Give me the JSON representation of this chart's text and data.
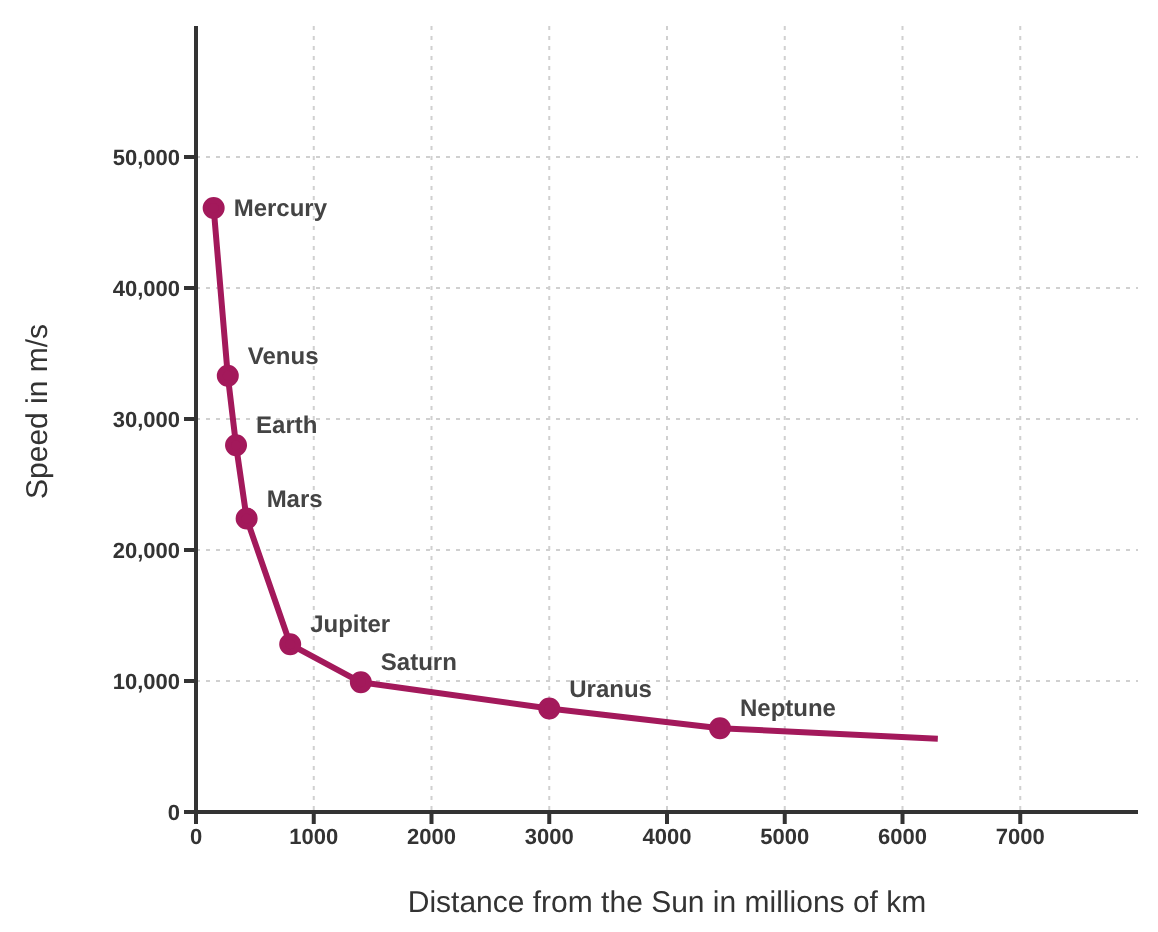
{
  "chart_data": {
    "type": "line",
    "xlabel": "Distance from the Sun in millions of km",
    "ylabel": "Speed in m/s",
    "series": [
      {
        "color": "#a3195b",
        "marker": "circle",
        "x": [
          150,
          270,
          340,
          430,
          800,
          1400,
          3000,
          4450
        ],
        "values": [
          46100,
          33300,
          28000,
          22400,
          12800,
          9900,
          7900,
          6400
        ]
      },
      {
        "color": "#a3195b",
        "marker": "none",
        "x": [
          4450,
          6300
        ],
        "values": [
          6400,
          5600
        ]
      }
    ],
    "annotations": [
      {
        "text": "Mercury",
        "x": 150,
        "y": 46100
      },
      {
        "text": "Venus",
        "x": 270,
        "y": 33300
      },
      {
        "text": "Earth",
        "x": 340,
        "y": 28000
      },
      {
        "text": "Mars",
        "x": 430,
        "y": 22400
      },
      {
        "text": "Jupiter",
        "x": 800,
        "y": 12800
      },
      {
        "text": "Saturn",
        "x": 1400,
        "y": 9900
      },
      {
        "text": "Uranus",
        "x": 3000,
        "y": 7900
      },
      {
        "text": "Neptune",
        "x": 4450,
        "y": 6400
      }
    ],
    "xlim": [
      0,
      8000
    ],
    "xticks": [
      0,
      1000,
      2000,
      3000,
      4000,
      5000,
      6000,
      7000
    ],
    "ylim": [
      0,
      60000
    ],
    "yticks": [
      {
        "value": 0,
        "label": "0"
      },
      {
        "value": 10000,
        "label": "10,000"
      },
      {
        "value": 20000,
        "label": "20,000"
      },
      {
        "value": 30000,
        "label": "30,000"
      },
      {
        "value": 40000,
        "label": "40,000"
      },
      {
        "value": 50000,
        "label": "50,000"
      }
    ],
    "grid": true,
    "line_style": "solid"
  }
}
